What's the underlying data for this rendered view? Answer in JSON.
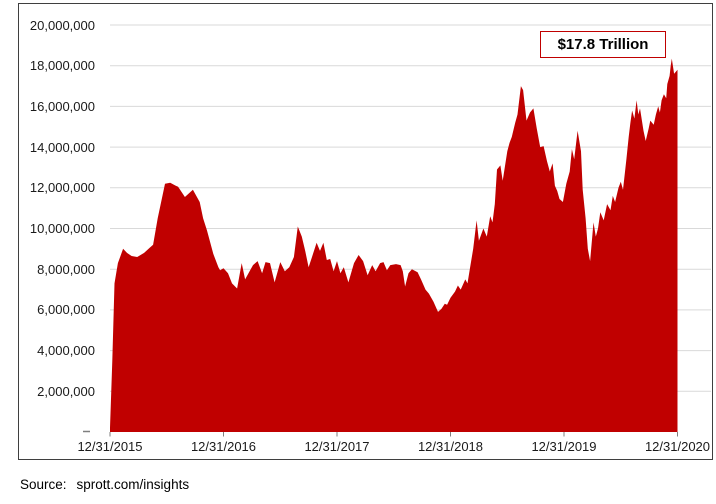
{
  "chart": {
    "annotation": "$17.8 Trillion",
    "source_label": "Source:",
    "source_text": "sprott.com/insights"
  },
  "colors": {
    "area_fill": "#c00000",
    "annotation_border": "#c00000",
    "gridline": "#d9d9d9",
    "tick": "#7f7f7f",
    "frame": "#3f3f3f",
    "label_text": "#1a1a1a"
  },
  "chart_data": {
    "type": "area",
    "title": "",
    "xlabel": "",
    "ylabel": "",
    "grid": true,
    "legend": false,
    "annotation": "$17.8 Trillion",
    "x_tick_labels": [
      "12/31/2015",
      "12/31/2016",
      "12/31/2017",
      "12/31/2018",
      "12/31/2019",
      "12/31/2020"
    ],
    "y_tick_labels": [
      "2,000,000",
      "4,000,000",
      "6,000,000",
      "8,000,000",
      "10,000,000",
      "12,000,000",
      "14,000,000",
      "16,000,000",
      "18,000,000",
      "20,000,000"
    ],
    "y_tick_step": 2000000,
    "ylim": [
      0,
      20000000
    ],
    "x_unit": "years_after_12/31/2015",
    "end_value": 17800000,
    "points": [
      [
        0.0,
        200000
      ],
      [
        0.02,
        3500000
      ],
      [
        0.04,
        7300000
      ],
      [
        0.07,
        8300000
      ],
      [
        0.115,
        9000000
      ],
      [
        0.15,
        8800000
      ],
      [
        0.19,
        8650000
      ],
      [
        0.24,
        8600000
      ],
      [
        0.3,
        8800000
      ],
      [
        0.35,
        9050000
      ],
      [
        0.38,
        9200000
      ],
      [
        0.42,
        10500000
      ],
      [
        0.485,
        12200000
      ],
      [
        0.53,
        12250000
      ],
      [
        0.58,
        12100000
      ],
      [
        0.6,
        12050000
      ],
      [
        0.66,
        11550000
      ],
      [
        0.73,
        11900000
      ],
      [
        0.79,
        11300000
      ],
      [
        0.82,
        10500000
      ],
      [
        0.855,
        9900000
      ],
      [
        0.91,
        8750000
      ],
      [
        0.955,
        8100000
      ],
      [
        0.97,
        7950000
      ],
      [
        1.0,
        8050000
      ],
      [
        1.04,
        7800000
      ],
      [
        1.075,
        7300000
      ],
      [
        1.12,
        7050000
      ],
      [
        1.16,
        8300000
      ],
      [
        1.19,
        7500000
      ],
      [
        1.23,
        7900000
      ],
      [
        1.26,
        8200000
      ],
      [
        1.3,
        8400000
      ],
      [
        1.34,
        7800000
      ],
      [
        1.37,
        8350000
      ],
      [
        1.41,
        8300000
      ],
      [
        1.45,
        7350000
      ],
      [
        1.5,
        8350000
      ],
      [
        1.54,
        7900000
      ],
      [
        1.58,
        8100000
      ],
      [
        1.62,
        8600000
      ],
      [
        1.655,
        10100000
      ],
      [
        1.69,
        9600000
      ],
      [
        1.72,
        8900000
      ],
      [
        1.75,
        8100000
      ],
      [
        1.78,
        8600000
      ],
      [
        1.82,
        9300000
      ],
      [
        1.85,
        8900000
      ],
      [
        1.88,
        9300000
      ],
      [
        1.91,
        8450000
      ],
      [
        1.94,
        8500000
      ],
      [
        1.97,
        7900000
      ],
      [
        2.0,
        8400000
      ],
      [
        2.03,
        7800000
      ],
      [
        2.06,
        8100000
      ],
      [
        2.1,
        7350000
      ],
      [
        2.15,
        8300000
      ],
      [
        2.19,
        8700000
      ],
      [
        2.23,
        8400000
      ],
      [
        2.27,
        7700000
      ],
      [
        2.31,
        8200000
      ],
      [
        2.34,
        7900000
      ],
      [
        2.38,
        8300000
      ],
      [
        2.41,
        8350000
      ],
      [
        2.44,
        7950000
      ],
      [
        2.47,
        8200000
      ],
      [
        2.52,
        8250000
      ],
      [
        2.56,
        8200000
      ],
      [
        2.58,
        7900000
      ],
      [
        2.6,
        7150000
      ],
      [
        2.63,
        7800000
      ],
      [
        2.66,
        8000000
      ],
      [
        2.71,
        7850000
      ],
      [
        2.74,
        7500000
      ],
      [
        2.78,
        7000000
      ],
      [
        2.81,
        6800000
      ],
      [
        2.85,
        6400000
      ],
      [
        2.89,
        5900000
      ],
      [
        2.92,
        6050000
      ],
      [
        2.95,
        6300000
      ],
      [
        2.97,
        6250000
      ],
      [
        3.0,
        6600000
      ],
      [
        3.04,
        6900000
      ],
      [
        3.065,
        7200000
      ],
      [
        3.09,
        7000000
      ],
      [
        3.13,
        7500000
      ],
      [
        3.15,
        7300000
      ],
      [
        3.17,
        8000000
      ],
      [
        3.2,
        9000000
      ],
      [
        3.23,
        10400000
      ],
      [
        3.25,
        9400000
      ],
      [
        3.29,
        10000000
      ],
      [
        3.32,
        9600000
      ],
      [
        3.35,
        10600000
      ],
      [
        3.37,
        10300000
      ],
      [
        3.39,
        11200000
      ],
      [
        3.41,
        12900000
      ],
      [
        3.44,
        13100000
      ],
      [
        3.46,
        12350000
      ],
      [
        3.5,
        13800000
      ],
      [
        3.52,
        14200000
      ],
      [
        3.54,
        14500000
      ],
      [
        3.57,
        15200000
      ],
      [
        3.59,
        15600000
      ],
      [
        3.61,
        16500000
      ],
      [
        3.62,
        17000000
      ],
      [
        3.64,
        16800000
      ],
      [
        3.67,
        15300000
      ],
      [
        3.7,
        15700000
      ],
      [
        3.73,
        15900000
      ],
      [
        3.76,
        14900000
      ],
      [
        3.79,
        14000000
      ],
      [
        3.82,
        14050000
      ],
      [
        3.85,
        13300000
      ],
      [
        3.875,
        12800000
      ],
      [
        3.9,
        13200000
      ],
      [
        3.92,
        12100000
      ],
      [
        3.94,
        11850000
      ],
      [
        3.96,
        11450000
      ],
      [
        3.99,
        11300000
      ],
      [
        4.02,
        12200000
      ],
      [
        4.05,
        12800000
      ],
      [
        4.07,
        13900000
      ],
      [
        4.09,
        13400000
      ],
      [
        4.12,
        14800000
      ],
      [
        4.15,
        13800000
      ],
      [
        4.165,
        11900000
      ],
      [
        4.19,
        10500000
      ],
      [
        4.21,
        9000000
      ],
      [
        4.23,
        8400000
      ],
      [
        4.26,
        10300000
      ],
      [
        4.28,
        9600000
      ],
      [
        4.3,
        10000000
      ],
      [
        4.32,
        10800000
      ],
      [
        4.35,
        10400000
      ],
      [
        4.38,
        11200000
      ],
      [
        4.41,
        10900000
      ],
      [
        4.43,
        11600000
      ],
      [
        4.45,
        11300000
      ],
      [
        4.48,
        12000000
      ],
      [
        4.5,
        12300000
      ],
      [
        4.52,
        11900000
      ],
      [
        4.55,
        13400000
      ],
      [
        4.57,
        14500000
      ],
      [
        4.585,
        15200000
      ],
      [
        4.6,
        15800000
      ],
      [
        4.62,
        15400000
      ],
      [
        4.64,
        16300000
      ],
      [
        4.655,
        15600000
      ],
      [
        4.67,
        15900000
      ],
      [
        4.7,
        14800000
      ],
      [
        4.72,
        14300000
      ],
      [
        4.745,
        14900000
      ],
      [
        4.76,
        15300000
      ],
      [
        4.79,
        15100000
      ],
      [
        4.81,
        15600000
      ],
      [
        4.83,
        16000000
      ],
      [
        4.845,
        15700000
      ],
      [
        4.86,
        16300000
      ],
      [
        4.88,
        16600000
      ],
      [
        4.9,
        16400000
      ],
      [
        4.91,
        17100000
      ],
      [
        4.93,
        17500000
      ],
      [
        4.94,
        18000000
      ],
      [
        4.95,
        18350000
      ],
      [
        4.97,
        17600000
      ],
      [
        5.0,
        17800000
      ]
    ]
  }
}
